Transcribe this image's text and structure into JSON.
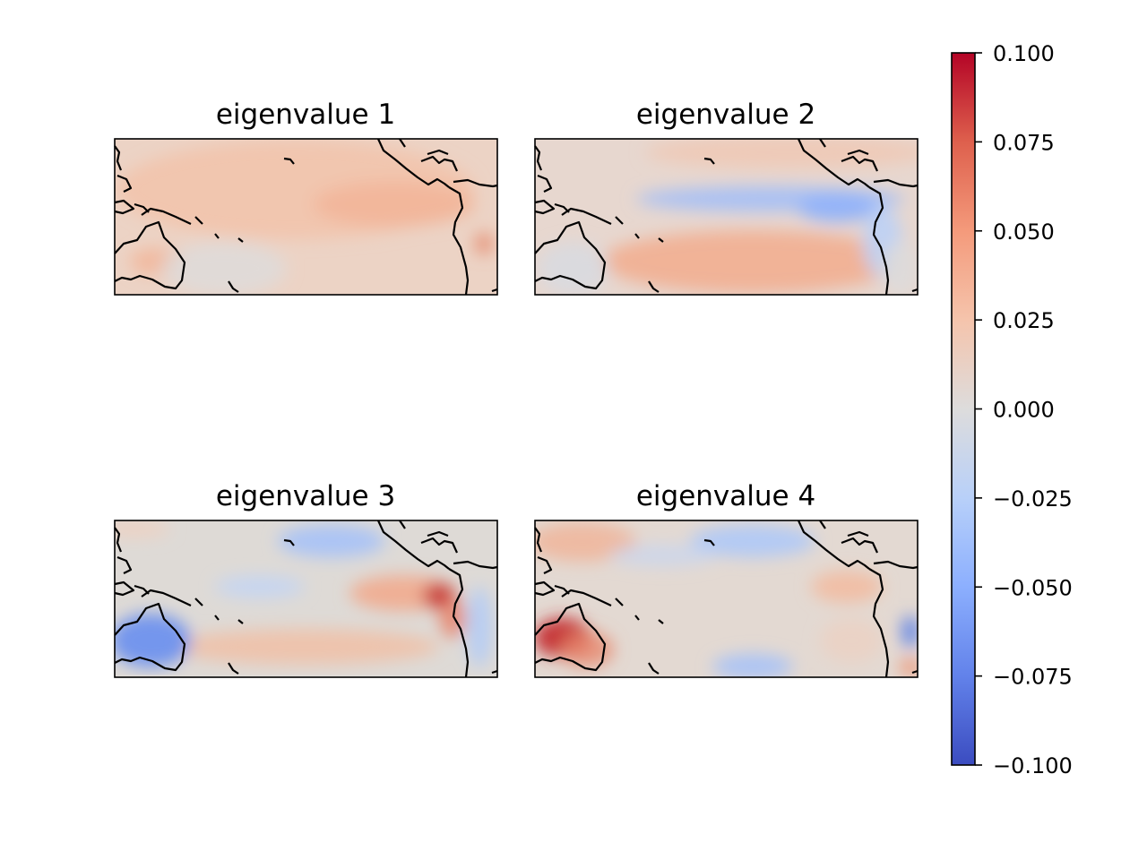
{
  "chart_data": {
    "type": "heatmap",
    "colormap": "coolwarm",
    "panels": [
      {
        "title": "eigenvalue 1"
      },
      {
        "title": "eigenvalue 2"
      },
      {
        "title": "eigenvalue 3"
      },
      {
        "title": "eigenvalue 4"
      }
    ],
    "colorbar": {
      "range": [
        -0.1,
        0.1
      ],
      "ticks": [
        {
          "value": 0.1,
          "label": "0.100"
        },
        {
          "value": 0.075,
          "label": "0.075"
        },
        {
          "value": 0.05,
          "label": "0.050"
        },
        {
          "value": 0.025,
          "label": "0.025"
        },
        {
          "value": 0,
          "label": "0.000"
        },
        {
          "value": -0.025,
          "label": "−0.025"
        },
        {
          "value": -0.05,
          "label": "−0.050"
        },
        {
          "value": -0.075,
          "label": "−0.075"
        },
        {
          "value": -0.1,
          "label": "−0.100"
        }
      ]
    },
    "grid": false,
    "legend": "colorbar right"
  }
}
